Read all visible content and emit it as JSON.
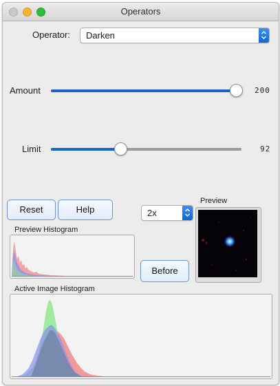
{
  "window": {
    "title": "Operators"
  },
  "operator": {
    "label": "Operator:",
    "value": "Darken"
  },
  "amount": {
    "label": "Amount",
    "value": 200,
    "fraction": 1.0
  },
  "limit": {
    "label": "Limit",
    "value": 92,
    "fraction": 0.36
  },
  "buttons": {
    "reset": "Reset",
    "help": "Help",
    "before": "Before"
  },
  "zoom": {
    "value": "2x"
  },
  "preview": {
    "label": "Preview"
  },
  "histograms": {
    "preview_label": "Preview Histogram",
    "active_label": "Active Image Histogram"
  },
  "colors": {
    "accent": "#1b64c6",
    "hist_red": "#f08a8a",
    "hist_green": "#8ee88e",
    "hist_blue": "#8a8ef0"
  }
}
